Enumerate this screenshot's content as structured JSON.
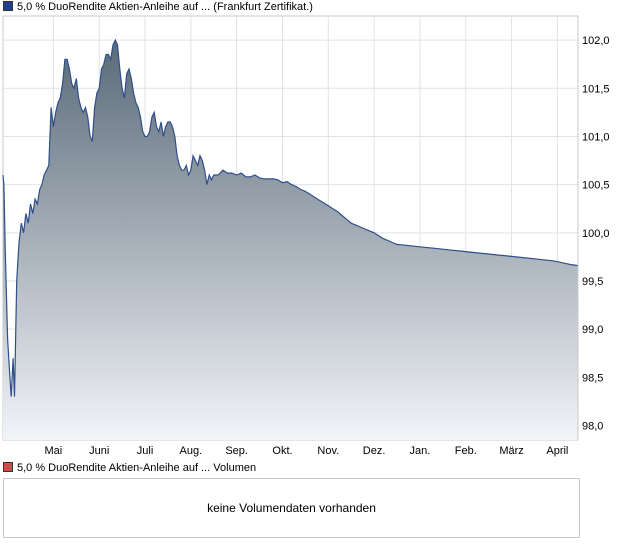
{
  "legend_price": {
    "label": "5,0 % DuoRendite Aktien-Anleihe auf ... (Frankfurt Zertifikat.)",
    "color": "#1f3e8c"
  },
  "legend_volume": {
    "label": "5,0 % DuoRendite Aktien-Anleihe auf ... Volumen",
    "color": "#cc4c4c"
  },
  "volume": {
    "message": "keine Volumendaten vorhanden"
  },
  "chart_data": {
    "type": "area",
    "title": "",
    "xlabel": "",
    "ylabel": "",
    "ylim": [
      97.85,
      102.25
    ],
    "y_ticks": [
      "102,0",
      "101,5",
      "101,0",
      "100,5",
      "100,0",
      "99,5",
      "99,0",
      "98,5",
      "98,0"
    ],
    "y_tick_values": [
      102.0,
      101.5,
      101.0,
      100.5,
      100.0,
      99.5,
      99.0,
      98.5,
      98.0
    ],
    "x_ticks": [
      "Mai",
      "Juni",
      "Juli",
      "Aug.",
      "Sep.",
      "Okt.",
      "Nov.",
      "Dez.",
      "Jan.",
      "Feb.",
      "März",
      "April"
    ],
    "x_tick_positions": [
      0.5,
      1.5,
      2.5,
      3.5,
      4.5,
      5.5,
      6.5,
      7.5,
      8.5,
      9.5,
      10.5,
      11.5
    ],
    "x_range": [
      -0.6,
      11.95
    ],
    "grid": true,
    "line_color": "#2f4f8a",
    "fill_top_color": "#5a6a78",
    "fill_bottom_color": "#f2f4f8",
    "series": [
      {
        "x": [
          -0.6,
          -0.58,
          -0.55,
          -0.5,
          -0.45,
          -0.42,
          -0.38,
          -0.35,
          -0.3,
          -0.25,
          -0.2,
          -0.15,
          -0.1,
          -0.05,
          0.0,
          0.05,
          0.1,
          0.15,
          0.2,
          0.25,
          0.3,
          0.35,
          0.4,
          0.45,
          0.5,
          0.55,
          0.6,
          0.65,
          0.7,
          0.75,
          0.8,
          0.85,
          0.9,
          0.95,
          1.0,
          1.05,
          1.1,
          1.15,
          1.2,
          1.25,
          1.3,
          1.35,
          1.4,
          1.45,
          1.5,
          1.55,
          1.6,
          1.65,
          1.7,
          1.75,
          1.8,
          1.85,
          1.9,
          1.95,
          2.0,
          2.05,
          2.1,
          2.15,
          2.2,
          2.25,
          2.3,
          2.35,
          2.4,
          2.45,
          2.5,
          2.55,
          2.6,
          2.65,
          2.7,
          2.75,
          2.8,
          2.85,
          2.9,
          2.95,
          3.0,
          3.05,
          3.1,
          3.15,
          3.2,
          3.25,
          3.3,
          3.35,
          3.4,
          3.45,
          3.5,
          3.55,
          3.6,
          3.65,
          3.7,
          3.75,
          3.8,
          3.85,
          3.9,
          3.95,
          4.0,
          4.1,
          4.2,
          4.3,
          4.4,
          4.5,
          4.6,
          4.7,
          4.8,
          4.9,
          5.0,
          5.1,
          5.2,
          5.3,
          5.4,
          5.5,
          5.6,
          5.7,
          5.8,
          5.9,
          6.0,
          6.1,
          6.2,
          6.3,
          6.4,
          6.5,
          6.6,
          6.7,
          6.8,
          6.9,
          7.0,
          7.1,
          7.2,
          7.3,
          7.4,
          7.5,
          7.6,
          7.7,
          7.8,
          7.9,
          8.0,
          8.2,
          8.4,
          8.6,
          8.8,
          9.0,
          9.2,
          9.4,
          9.6,
          9.8,
          10.0,
          10.2,
          10.4,
          10.6,
          10.8,
          11.0,
          11.2,
          11.4,
          11.5,
          11.6,
          11.7,
          11.8,
          11.95
        ],
        "y": [
          100.6,
          100.5,
          99.8,
          98.9,
          98.5,
          98.3,
          98.7,
          98.3,
          99.5,
          99.9,
          100.1,
          100.0,
          100.2,
          100.1,
          100.3,
          100.2,
          100.35,
          100.3,
          100.45,
          100.5,
          100.6,
          100.65,
          100.7,
          101.3,
          101.1,
          101.25,
          101.35,
          101.4,
          101.55,
          101.8,
          101.8,
          101.7,
          101.55,
          101.5,
          101.6,
          101.4,
          101.3,
          101.25,
          101.3,
          101.2,
          101.0,
          100.95,
          101.3,
          101.45,
          101.5,
          101.7,
          101.75,
          101.85,
          101.85,
          101.8,
          101.95,
          102.0,
          101.95,
          101.7,
          101.5,
          101.4,
          101.65,
          101.7,
          101.6,
          101.45,
          101.35,
          101.3,
          101.2,
          101.05,
          101.0,
          101.0,
          101.05,
          101.2,
          101.25,
          101.1,
          101.05,
          101.15,
          101.0,
          101.1,
          101.15,
          101.15,
          101.1,
          101.0,
          100.8,
          100.7,
          100.65,
          100.65,
          100.7,
          100.6,
          100.65,
          100.8,
          100.75,
          100.7,
          100.8,
          100.75,
          100.65,
          100.5,
          100.6,
          100.55,
          100.6,
          100.6,
          100.65,
          100.62,
          100.62,
          100.6,
          100.62,
          100.58,
          100.58,
          100.6,
          100.57,
          100.56,
          100.56,
          100.56,
          100.55,
          100.52,
          100.53,
          100.5,
          100.48,
          100.45,
          100.43,
          100.4,
          100.37,
          100.34,
          100.31,
          100.28,
          100.25,
          100.22,
          100.18,
          100.14,
          100.1,
          100.08,
          100.06,
          100.04,
          100.02,
          100.0,
          99.97,
          99.94,
          99.92,
          99.9,
          99.88,
          99.87,
          99.86,
          99.85,
          99.84,
          99.83,
          99.82,
          99.81,
          99.8,
          99.79,
          99.78,
          99.77,
          99.76,
          99.75,
          99.74,
          99.73,
          99.72,
          99.71,
          99.7,
          99.69,
          99.68,
          99.67,
          99.66
        ]
      }
    ]
  }
}
